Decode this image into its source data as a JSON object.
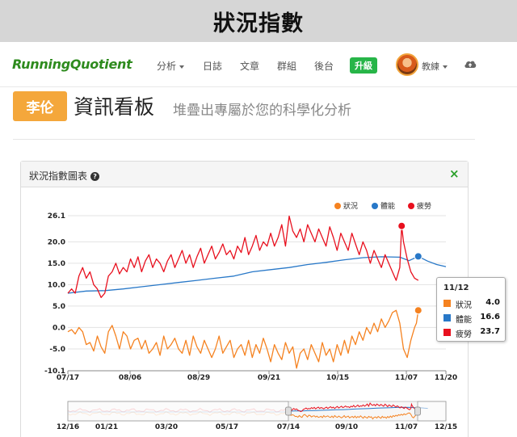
{
  "banner": {
    "title": "狀況指數"
  },
  "nav": {
    "logo": "RunningQuotient",
    "items": [
      "分析",
      "日誌",
      "文章",
      "群組",
      "後台"
    ],
    "upgrade": "升級",
    "coach": "教練",
    "icons": {
      "avatar": "avatar",
      "cloud": "cloud-upload-icon"
    }
  },
  "header": {
    "user_badge": "李伦",
    "title": "資訊看板",
    "subtitle": "堆疊出專屬於您的科學化分析"
  },
  "panel": {
    "title": "狀況指數圖表",
    "close_label": "×"
  },
  "tooltip": {
    "date": "11/12",
    "rows": [
      {
        "name": "狀況",
        "value": "4.0",
        "color": "#f58220"
      },
      {
        "name": "體能",
        "value": "16.6",
        "color": "#2878c8"
      },
      {
        "name": "疲勞",
        "value": "23.7",
        "color": "#e8101e"
      }
    ]
  },
  "chart_data": {
    "type": "line",
    "title": "",
    "xlabel": "",
    "ylabel": "",
    "ylim": [
      -10.1,
      26.1
    ],
    "ytick_labels": [
      "26.1",
      "20.0",
      "15.0",
      "10.0",
      "5.0",
      "0.0",
      "-5.0",
      "-10.1"
    ],
    "xtick_labels": [
      "07/17",
      "08/06",
      "08/29",
      "09/21",
      "10/15",
      "11/07",
      "11/20"
    ],
    "grid": true,
    "legend": "top-right",
    "legend_items": [
      "狀況",
      "體能",
      "疲勞"
    ],
    "series_colors": {
      "status": "#f58220",
      "fitness": "#2878c8",
      "fatigue": "#e8101e"
    },
    "highlight": {
      "date": "11/12",
      "status": 4.0,
      "fitness": 16.6,
      "fatigue": 23.7
    },
    "series": [
      {
        "name": "狀況",
        "points": [
          [
            0,
            -1
          ],
          [
            2,
            -0.5
          ],
          [
            4,
            -1.5
          ],
          [
            6,
            0
          ],
          [
            8,
            -1
          ],
          [
            10,
            -4
          ],
          [
            12,
            -3.5
          ],
          [
            14,
            -5.5
          ],
          [
            16,
            -2
          ],
          [
            18,
            -4.5
          ],
          [
            20,
            -6
          ],
          [
            22,
            -1
          ],
          [
            24,
            0.5
          ],
          [
            26,
            -2
          ],
          [
            28,
            -5
          ],
          [
            30,
            -1
          ],
          [
            32,
            -2
          ],
          [
            34,
            -5
          ],
          [
            36,
            -3
          ],
          [
            38,
            -2.5
          ],
          [
            40,
            -5
          ],
          [
            42,
            -3
          ],
          [
            44,
            -6
          ],
          [
            46,
            -5
          ],
          [
            48,
            -3.5
          ],
          [
            50,
            -6.5
          ],
          [
            52,
            -2
          ],
          [
            54,
            -5
          ],
          [
            56,
            -4
          ],
          [
            58,
            -2.5
          ],
          [
            60,
            -5
          ],
          [
            62,
            -6
          ],
          [
            64,
            -3
          ],
          [
            66,
            -6.5
          ],
          [
            68,
            -2
          ],
          [
            70,
            -4.5
          ],
          [
            72,
            -6
          ],
          [
            74,
            -3
          ],
          [
            76,
            -5
          ],
          [
            78,
            -7
          ],
          [
            80,
            -5
          ],
          [
            82,
            -2
          ],
          [
            84,
            -6
          ],
          [
            86,
            -4.5
          ],
          [
            88,
            -3
          ],
          [
            90,
            -7
          ],
          [
            92,
            -5
          ],
          [
            94,
            -4
          ],
          [
            96,
            -6.5
          ],
          [
            98,
            -3
          ],
          [
            100,
            -7
          ],
          [
            102,
            -4
          ],
          [
            104,
            -6
          ],
          [
            106,
            -2.5
          ],
          [
            108,
            -5
          ],
          [
            110,
            -8
          ],
          [
            112,
            -4
          ],
          [
            114,
            -6
          ],
          [
            116,
            -7.5
          ],
          [
            118,
            -3.5
          ],
          [
            120,
            -6
          ],
          [
            122,
            -4.5
          ],
          [
            124,
            -9.5
          ],
          [
            126,
            -6
          ],
          [
            128,
            -5
          ],
          [
            130,
            -7.5
          ],
          [
            132,
            -4
          ],
          [
            134,
            -6
          ],
          [
            136,
            -8
          ],
          [
            138,
            -3.5
          ],
          [
            140,
            -6.5
          ],
          [
            142,
            -5
          ],
          [
            144,
            -8
          ],
          [
            146,
            -4
          ],
          [
            148,
            -6.5
          ],
          [
            150,
            -3
          ],
          [
            152,
            -6
          ],
          [
            154,
            -2
          ],
          [
            156,
            -4
          ],
          [
            158,
            -1
          ],
          [
            160,
            -3
          ],
          [
            162,
            0
          ],
          [
            164,
            -1.5
          ],
          [
            166,
            1
          ],
          [
            168,
            -1
          ],
          [
            170,
            2
          ],
          [
            172,
            0
          ],
          [
            174,
            1.5
          ],
          [
            176,
            3.5
          ],
          [
            178,
            4
          ],
          [
            180,
            1
          ],
          [
            182,
            -5
          ],
          [
            184,
            -7
          ],
          [
            186,
            -3
          ],
          [
            188,
            0
          ],
          [
            189,
            1
          ],
          [
            190,
            4
          ]
        ]
      },
      {
        "name": "體能",
        "points": [
          [
            0,
            8
          ],
          [
            10,
            8.5
          ],
          [
            20,
            8.6
          ],
          [
            30,
            9
          ],
          [
            40,
            9.5
          ],
          [
            50,
            10
          ],
          [
            60,
            10.5
          ],
          [
            70,
            11
          ],
          [
            80,
            11.5
          ],
          [
            90,
            12
          ],
          [
            100,
            13
          ],
          [
            110,
            13.5
          ],
          [
            120,
            14
          ],
          [
            130,
            14.7
          ],
          [
            140,
            15.2
          ],
          [
            150,
            15.8
          ],
          [
            160,
            16.3
          ],
          [
            170,
            16.5
          ],
          [
            180,
            16.4
          ],
          [
            185,
            15.6
          ],
          [
            190,
            16.6
          ],
          [
            195,
            15.5
          ],
          [
            200,
            14.7
          ],
          [
            205,
            14.2
          ]
        ]
      },
      {
        "name": "疲勞",
        "points": [
          [
            0,
            8
          ],
          [
            2,
            9
          ],
          [
            4,
            8
          ],
          [
            6,
            12
          ],
          [
            8,
            14
          ],
          [
            10,
            11.5
          ],
          [
            12,
            13
          ],
          [
            14,
            10
          ],
          [
            16,
            9
          ],
          [
            18,
            7
          ],
          [
            20,
            8
          ],
          [
            22,
            12
          ],
          [
            24,
            13
          ],
          [
            26,
            15
          ],
          [
            28,
            12.5
          ],
          [
            30,
            14
          ],
          [
            32,
            13
          ],
          [
            34,
            16
          ],
          [
            36,
            14
          ],
          [
            38,
            16.5
          ],
          [
            40,
            13
          ],
          [
            42,
            15.5
          ],
          [
            44,
            17
          ],
          [
            46,
            14
          ],
          [
            48,
            16
          ],
          [
            50,
            15
          ],
          [
            52,
            13
          ],
          [
            54,
            15.5
          ],
          [
            56,
            17
          ],
          [
            58,
            14
          ],
          [
            60,
            16
          ],
          [
            62,
            18
          ],
          [
            64,
            15
          ],
          [
            66,
            17
          ],
          [
            68,
            14
          ],
          [
            70,
            16.5
          ],
          [
            72,
            18.5
          ],
          [
            74,
            15
          ],
          [
            76,
            17
          ],
          [
            78,
            19
          ],
          [
            80,
            16
          ],
          [
            82,
            17.5
          ],
          [
            84,
            19.5
          ],
          [
            86,
            17
          ],
          [
            88,
            18
          ],
          [
            90,
            16
          ],
          [
            92,
            19
          ],
          [
            94,
            17.5
          ],
          [
            96,
            21
          ],
          [
            98,
            17
          ],
          [
            100,
            19
          ],
          [
            102,
            21.5
          ],
          [
            104,
            18
          ],
          [
            106,
            20
          ],
          [
            108,
            19
          ],
          [
            110,
            22
          ],
          [
            112,
            19
          ],
          [
            114,
            21
          ],
          [
            116,
            24
          ],
          [
            118,
            19
          ],
          [
            120,
            26
          ],
          [
            122,
            22.5
          ],
          [
            124,
            21
          ],
          [
            126,
            23
          ],
          [
            128,
            20
          ],
          [
            130,
            24
          ],
          [
            132,
            22
          ],
          [
            134,
            20
          ],
          [
            136,
            23
          ],
          [
            138,
            21
          ],
          [
            140,
            19
          ],
          [
            142,
            23.5
          ],
          [
            144,
            21
          ],
          [
            146,
            18
          ],
          [
            148,
            22
          ],
          [
            150,
            20
          ],
          [
            152,
            18
          ],
          [
            154,
            22
          ],
          [
            156,
            19.5
          ],
          [
            158,
            17
          ],
          [
            160,
            20
          ],
          [
            162,
            18
          ],
          [
            164,
            15
          ],
          [
            166,
            18
          ],
          [
            168,
            16
          ],
          [
            170,
            14
          ],
          [
            172,
            17
          ],
          [
            174,
            15
          ],
          [
            176,
            13
          ],
          [
            178,
            11
          ],
          [
            180,
            14
          ],
          [
            181,
            23.7
          ],
          [
            182,
            20
          ],
          [
            184,
            16
          ],
          [
            186,
            13
          ],
          [
            188,
            11.5
          ],
          [
            190,
            11
          ]
        ]
      }
    ],
    "navigator": {
      "xtick_labels": [
        "12/16",
        "01/21",
        "03/20",
        "05/17",
        "07/14",
        "09/10",
        "11/07",
        "12/15"
      ]
    }
  }
}
